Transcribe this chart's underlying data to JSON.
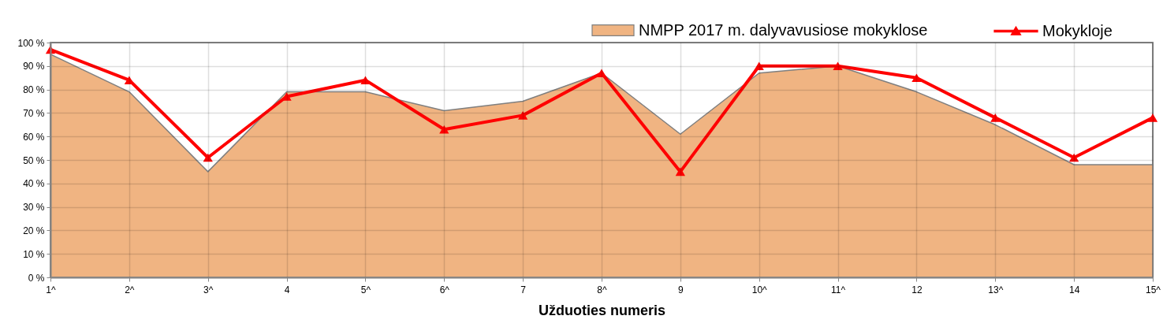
{
  "chart_data": {
    "type": "area",
    "xlabel": "Užduoties numeris",
    "categories": [
      "1^",
      "2^",
      "3^",
      "4",
      "5^",
      "6^",
      "7",
      "8^",
      "9",
      "10^",
      "11^",
      "12",
      "13^",
      "14",
      "15^"
    ],
    "series": [
      {
        "name": "NMPP 2017 m. dalyvavusiose mokyklose",
        "color": "#f0b482",
        "values": [
          95,
          79,
          45,
          79,
          79,
          71,
          75,
          87,
          61,
          87,
          90,
          79,
          65,
          48,
          48
        ]
      },
      {
        "name": "Mokykloje",
        "type": "line",
        "color": "#ff0000",
        "marker": "triangle",
        "values": [
          97,
          84,
          51,
          77,
          84,
          63,
          69,
          87,
          45,
          90,
          90,
          85,
          68,
          51,
          68
        ]
      }
    ],
    "ylim": [
      0,
      100
    ],
    "yticks": [
      {
        "value": 0,
        "label": "0 %"
      },
      {
        "value": 10,
        "label": "10 %"
      },
      {
        "value": 20,
        "label": "20 %"
      },
      {
        "value": 30,
        "label": "30 %"
      },
      {
        "value": 40,
        "label": "40 %"
      },
      {
        "value": 50,
        "label": "50 %"
      },
      {
        "value": 60,
        "label": "60 %"
      },
      {
        "value": 70,
        "label": "70 %"
      },
      {
        "value": 80,
        "label": "80 %"
      },
      {
        "value": 90,
        "label": "90 %"
      },
      {
        "value": 100,
        "label": "100 %"
      }
    ],
    "grid": true,
    "legend": "top right"
  }
}
